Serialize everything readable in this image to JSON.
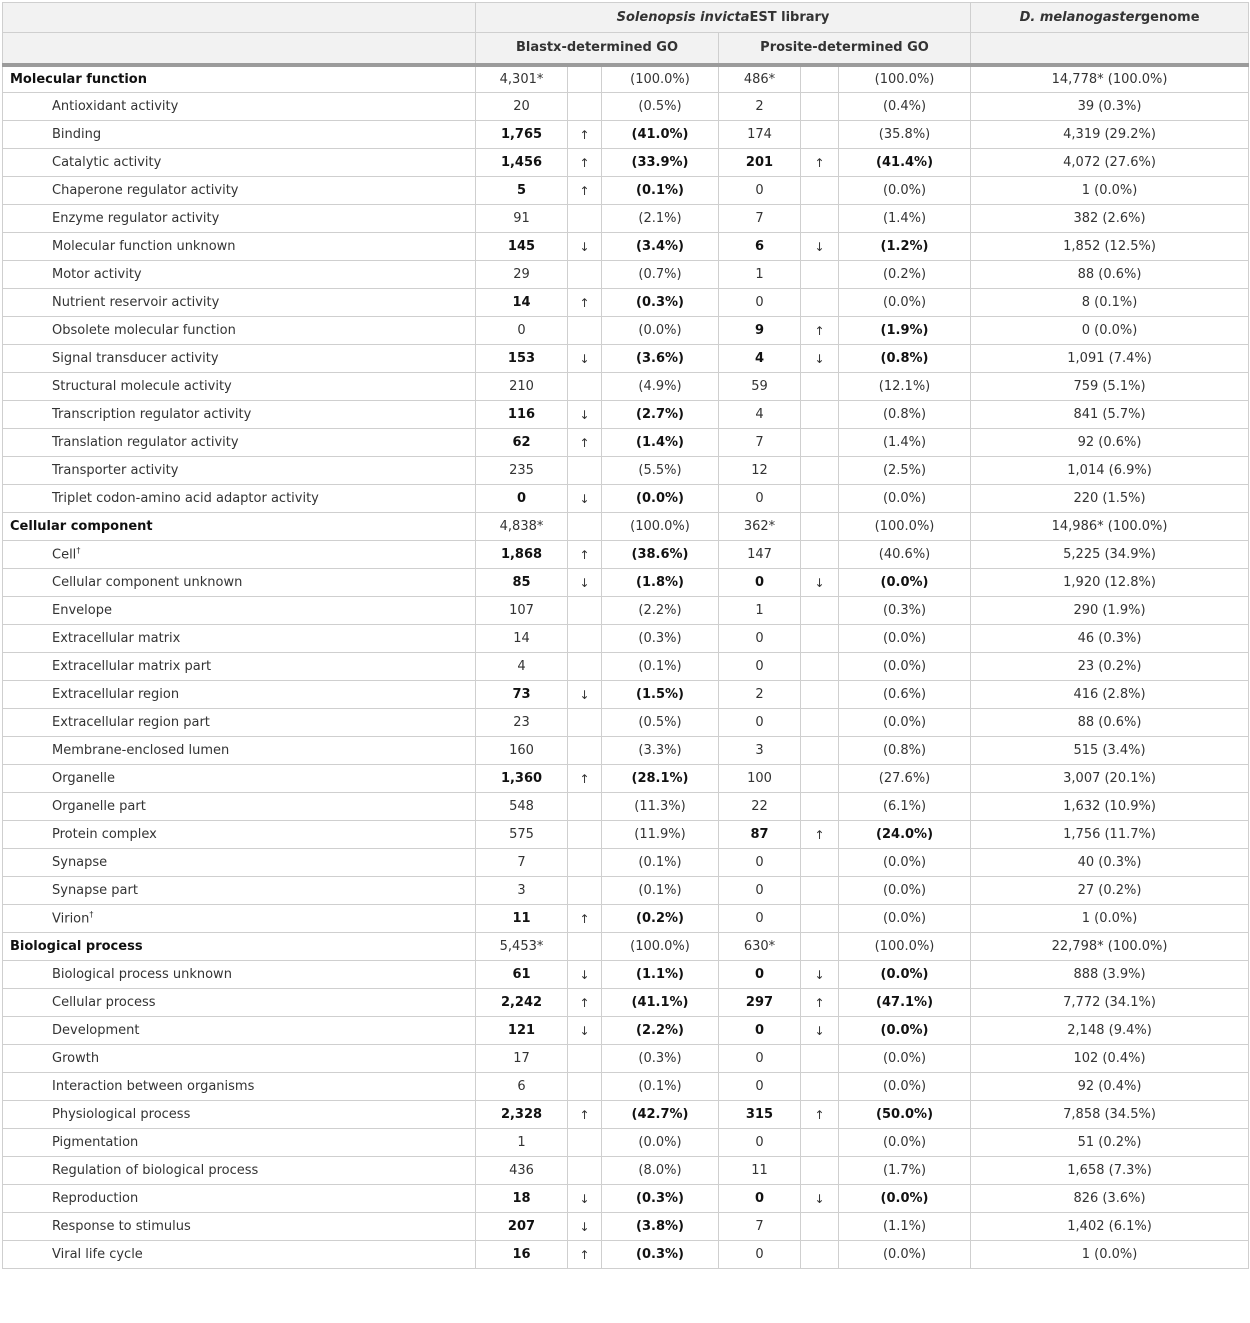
{
  "header": {
    "solenopsis_italic": "Solenopsis invicta",
    "solenopsis_rest": "EST library",
    "dmel_italic": "D. melanogaster",
    "dmel_rest": "genome",
    "blastx": "Blastx-determined GO",
    "prosite": "Prosite-determined GO"
  },
  "rows": [
    {
      "label": "Molecular function",
      "section": true,
      "b": "4,301*",
      "bb": false,
      "ba": "",
      "bp": "(100.0%)",
      "p": "486*",
      "pb": false,
      "pa": "",
      "pp": "(100.0%)",
      "d": "14,778* (100.0%)"
    },
    {
      "label": "Antioxidant activity",
      "b": "20",
      "bb": false,
      "ba": "",
      "bp": "(0.5%)",
      "p": "2",
      "pb": false,
      "pa": "",
      "pp": "(0.4%)",
      "d": "39 (0.3%)"
    },
    {
      "label": "Binding",
      "b": "1,765",
      "bb": true,
      "ba": "↑",
      "bp": "(41.0%)",
      "p": "174",
      "pb": false,
      "pa": "",
      "pp": "(35.8%)",
      "d": "4,319 (29.2%)"
    },
    {
      "label": "Catalytic activity",
      "b": "1,456",
      "bb": true,
      "ba": "↑",
      "bp": "(33.9%)",
      "p": "201",
      "pb": true,
      "pa": "↑",
      "pp": "(41.4%)",
      "d": "4,072 (27.6%)"
    },
    {
      "label": "Chaperone regulator activity",
      "b": "5",
      "bb": true,
      "ba": "↑",
      "bp": "(0.1%)",
      "p": "0",
      "pb": false,
      "pa": "",
      "pp": "(0.0%)",
      "d": "1 (0.0%)"
    },
    {
      "label": "Enzyme regulator activity",
      "b": "91",
      "bb": false,
      "ba": "",
      "bp": "(2.1%)",
      "p": "7",
      "pb": false,
      "pa": "",
      "pp": "(1.4%)",
      "d": "382 (2.6%)"
    },
    {
      "label": "Molecular function unknown",
      "b": "145",
      "bb": true,
      "ba": "↓",
      "bp": "(3.4%)",
      "p": "6",
      "pb": true,
      "pa": "↓",
      "pp": "(1.2%)",
      "d": "1,852 (12.5%)"
    },
    {
      "label": "Motor activity",
      "b": "29",
      "bb": false,
      "ba": "",
      "bp": "(0.7%)",
      "p": "1",
      "pb": false,
      "pa": "",
      "pp": "(0.2%)",
      "d": "88 (0.6%)"
    },
    {
      "label": "Nutrient reservoir activity",
      "b": "14",
      "bb": true,
      "ba": "↑",
      "bp": "(0.3%)",
      "p": "0",
      "pb": false,
      "pa": "",
      "pp": "(0.0%)",
      "d": "8 (0.1%)"
    },
    {
      "label": "Obsolete molecular function",
      "b": "0",
      "bb": false,
      "ba": "",
      "bp": "(0.0%)",
      "p": "9",
      "pb": true,
      "pa": "↑",
      "pp": "(1.9%)",
      "d": "0 (0.0%)"
    },
    {
      "label": "Signal transducer activity",
      "b": "153",
      "bb": true,
      "ba": "↓",
      "bp": "(3.6%)",
      "p": "4",
      "pb": true,
      "pa": "↓",
      "pp": "(0.8%)",
      "d": "1,091 (7.4%)"
    },
    {
      "label": "Structural molecule activity",
      "b": "210",
      "bb": false,
      "ba": "",
      "bp": "(4.9%)",
      "p": "59",
      "pb": false,
      "pa": "",
      "pp": "(12.1%)",
      "d": "759 (5.1%)"
    },
    {
      "label": "Transcription regulator activity",
      "b": "116",
      "bb": true,
      "ba": "↓",
      "bp": "(2.7%)",
      "p": "4",
      "pb": false,
      "pa": "",
      "pp": "(0.8%)",
      "d": "841 (5.7%)"
    },
    {
      "label": "Translation regulator activity",
      "b": "62",
      "bb": true,
      "ba": "↑",
      "bp": "(1.4%)",
      "p": "7",
      "pb": false,
      "pa": "",
      "pp": "(1.4%)",
      "d": "92 (0.6%)"
    },
    {
      "label": "Transporter activity",
      "b": "235",
      "bb": false,
      "ba": "",
      "bp": "(5.5%)",
      "p": "12",
      "pb": false,
      "pa": "",
      "pp": "(2.5%)",
      "d": "1,014 (6.9%)"
    },
    {
      "label": "Triplet codon-amino acid adaptor activity",
      "b": "0",
      "bb": true,
      "ba": "↓",
      "bp": "(0.0%)",
      "p": "0",
      "pb": false,
      "pa": "",
      "pp": "(0.0%)",
      "d": "220 (1.5%)"
    },
    {
      "label": "Cellular component",
      "section": true,
      "b": "4,838*",
      "bb": false,
      "ba": "",
      "bp": "(100.0%)",
      "p": "362*",
      "pb": false,
      "pa": "",
      "pp": "(100.0%)",
      "d": "14,986* (100.0%)"
    },
    {
      "label": "Cell",
      "sup": "†",
      "b": "1,868",
      "bb": true,
      "ba": "↑",
      "bp": "(38.6%)",
      "p": "147",
      "pb": false,
      "pa": "",
      "pp": "(40.6%)",
      "d": "5,225 (34.9%)"
    },
    {
      "label": "Cellular component unknown",
      "b": "85",
      "bb": true,
      "ba": "↓",
      "bp": "(1.8%)",
      "p": "0",
      "pb": true,
      "pa": "↓",
      "pp": "(0.0%)",
      "d": "1,920 (12.8%)"
    },
    {
      "label": "Envelope",
      "b": "107",
      "bb": false,
      "ba": "",
      "bp": "(2.2%)",
      "p": "1",
      "pb": false,
      "pa": "",
      "pp": "(0.3%)",
      "d": "290 (1.9%)"
    },
    {
      "label": "Extracellular matrix",
      "b": "14",
      "bb": false,
      "ba": "",
      "bp": "(0.3%)",
      "p": "0",
      "pb": false,
      "pa": "",
      "pp": "(0.0%)",
      "d": "46 (0.3%)"
    },
    {
      "label": "Extracellular matrix part",
      "b": "4",
      "bb": false,
      "ba": "",
      "bp": "(0.1%)",
      "p": "0",
      "pb": false,
      "pa": "",
      "pp": "(0.0%)",
      "d": "23 (0.2%)"
    },
    {
      "label": "Extracellular region",
      "b": "73",
      "bb": true,
      "ba": "↓",
      "bp": "(1.5%)",
      "p": "2",
      "pb": false,
      "pa": "",
      "pp": "(0.6%)",
      "d": "416 (2.8%)"
    },
    {
      "label": "Extracellular region part",
      "b": "23",
      "bb": false,
      "ba": "",
      "bp": "(0.5%)",
      "p": "0",
      "pb": false,
      "pa": "",
      "pp": "(0.0%)",
      "d": "88 (0.6%)"
    },
    {
      "label": "Membrane-enclosed lumen",
      "b": "160",
      "bb": false,
      "ba": "",
      "bp": "(3.3%)",
      "p": "3",
      "pb": false,
      "pa": "",
      "pp": "(0.8%)",
      "d": "515 (3.4%)"
    },
    {
      "label": "Organelle",
      "b": "1,360",
      "bb": true,
      "ba": "↑",
      "bp": "(28.1%)",
      "p": "100",
      "pb": false,
      "pa": "",
      "pp": "(27.6%)",
      "d": "3,007 (20.1%)"
    },
    {
      "label": "Organelle part",
      "b": "548",
      "bb": false,
      "ba": "",
      "bp": "(11.3%)",
      "p": "22",
      "pb": false,
      "pa": "",
      "pp": "(6.1%)",
      "d": "1,632 (10.9%)"
    },
    {
      "label": "Protein complex",
      "b": "575",
      "bb": false,
      "ba": "",
      "bp": "(11.9%)",
      "p": "87",
      "pb": true,
      "pa": "↑",
      "pp": "(24.0%)",
      "d": "1,756 (11.7%)"
    },
    {
      "label": "Synapse",
      "b": "7",
      "bb": false,
      "ba": "",
      "bp": "(0.1%)",
      "p": "0",
      "pb": false,
      "pa": "",
      "pp": "(0.0%)",
      "d": "40 (0.3%)"
    },
    {
      "label": "Synapse part",
      "b": "3",
      "bb": false,
      "ba": "",
      "bp": "(0.1%)",
      "p": "0",
      "pb": false,
      "pa": "",
      "pp": "(0.0%)",
      "d": "27 (0.2%)"
    },
    {
      "label": "Virion",
      "sup": "†",
      "b": "11",
      "bb": true,
      "ba": "↑",
      "bp": "(0.2%)",
      "p": "0",
      "pb": false,
      "pa": "",
      "pp": "(0.0%)",
      "d": "1 (0.0%)"
    },
    {
      "label": "Biological process",
      "section": true,
      "b": "5,453*",
      "bb": false,
      "ba": "",
      "bp": "(100.0%)",
      "p": "630*",
      "pb": false,
      "pa": "",
      "pp": "(100.0%)",
      "d": "22,798* (100.0%)"
    },
    {
      "label": "Biological process unknown",
      "b": "61",
      "bb": true,
      "ba": "↓",
      "bp": "(1.1%)",
      "p": "0",
      "pb": true,
      "pa": "↓",
      "pp": "(0.0%)",
      "d": "888 (3.9%)"
    },
    {
      "label": "Cellular process",
      "b": "2,242",
      "bb": true,
      "ba": "↑",
      "bp": "(41.1%)",
      "p": "297",
      "pb": true,
      "pa": "↑",
      "pp": "(47.1%)",
      "d": "7,772 (34.1%)"
    },
    {
      "label": "Development",
      "b": "121",
      "bb": true,
      "ba": "↓",
      "bp": "(2.2%)",
      "p": "0",
      "pb": true,
      "pa": "↓",
      "pp": "(0.0%)",
      "d": "2,148 (9.4%)"
    },
    {
      "label": "Growth",
      "b": "17",
      "bb": false,
      "ba": "",
      "bp": "(0.3%)",
      "p": "0",
      "pb": false,
      "pa": "",
      "pp": "(0.0%)",
      "d": "102 (0.4%)"
    },
    {
      "label": "Interaction between organisms",
      "b": "6",
      "bb": false,
      "ba": "",
      "bp": "(0.1%)",
      "p": "0",
      "pb": false,
      "pa": "",
      "pp": "(0.0%)",
      "d": "92 (0.4%)"
    },
    {
      "label": "Physiological process",
      "b": "2,328",
      "bb": true,
      "ba": "↑",
      "bp": "(42.7%)",
      "p": "315",
      "pb": true,
      "pa": "↑",
      "pp": "(50.0%)",
      "d": "7,858 (34.5%)"
    },
    {
      "label": "Pigmentation",
      "b": "1",
      "bb": false,
      "ba": "",
      "bp": "(0.0%)",
      "p": "0",
      "pb": false,
      "pa": "",
      "pp": "(0.0%)",
      "d": "51 (0.2%)"
    },
    {
      "label": "Regulation of biological process",
      "b": "436",
      "bb": false,
      "ba": "",
      "bp": "(8.0%)",
      "p": "11",
      "pb": false,
      "pa": "",
      "pp": "(1.7%)",
      "d": "1,658 (7.3%)"
    },
    {
      "label": "Reproduction",
      "b": "18",
      "bb": true,
      "ba": "↓",
      "bp": "(0.3%)",
      "p": "0",
      "pb": true,
      "pa": "↓",
      "pp": "(0.0%)",
      "d": "826 (3.6%)"
    },
    {
      "label": "Response to stimulus",
      "b": "207",
      "bb": true,
      "ba": "↓",
      "bp": "(3.8%)",
      "p": "7",
      "pb": false,
      "pa": "",
      "pp": "(1.1%)",
      "d": "1,402 (6.1%)"
    },
    {
      "label": "Viral life cycle",
      "b": "16",
      "bb": true,
      "ba": "↑",
      "bp": "(0.3%)",
      "p": "0",
      "pb": false,
      "pa": "",
      "pp": "(0.0%)",
      "d": "1 (0.0%)"
    }
  ]
}
